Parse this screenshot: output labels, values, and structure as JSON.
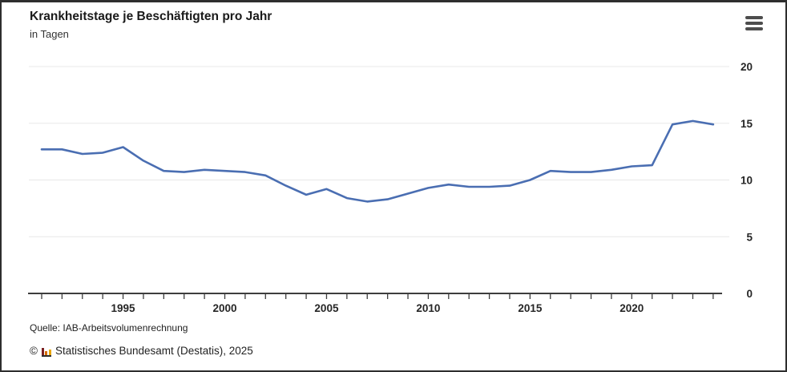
{
  "header": {
    "title": "Krankheitstage je Beschäftigten pro Jahr",
    "subtitle": "in Tagen"
  },
  "menu": {
    "icon": "hamburger-menu-icon"
  },
  "footer": {
    "source": "Quelle: IAB-Arbeitsvolumenrechnung",
    "copyright_symbol": "©",
    "copyright_text": "Statistisches Bundesamt (Destatis), 2025",
    "logo_icon": "destatis-bar-chart-logo-icon"
  },
  "colors": {
    "line": "#4a6eb2",
    "grid": "#e8e8e8",
    "axis": "#3d3d3d",
    "text": "#262626"
  },
  "chart_data": {
    "type": "line",
    "title": "Krankheitstage je Beschäftigten pro Jahr",
    "ylabel": "in Tagen",
    "xlabel": "",
    "grid": "horizontal",
    "legend": "none",
    "ylim": [
      0,
      20
    ],
    "yticks": [
      0,
      5,
      10,
      15,
      20
    ],
    "xticks_labeled": [
      1995,
      2000,
      2005,
      2010,
      2015,
      2020
    ],
    "line_color": "#4a6eb2",
    "x": [
      1991,
      1992,
      1993,
      1994,
      1995,
      1996,
      1997,
      1998,
      1999,
      2000,
      2001,
      2002,
      2003,
      2004,
      2005,
      2006,
      2007,
      2008,
      2009,
      2010,
      2011,
      2012,
      2013,
      2014,
      2015,
      2016,
      2017,
      2018,
      2019,
      2020,
      2021,
      2022,
      2023,
      2024
    ],
    "values": [
      12.7,
      12.7,
      12.3,
      12.4,
      12.9,
      11.7,
      10.8,
      10.7,
      10.9,
      10.8,
      10.7,
      10.4,
      9.5,
      8.7,
      9.2,
      8.4,
      8.1,
      8.3,
      8.8,
      9.3,
      9.6,
      9.4,
      9.4,
      9.5,
      10.0,
      10.8,
      10.7,
      10.7,
      10.9,
      11.2,
      11.3,
      14.9,
      15.2,
      14.9
    ]
  }
}
